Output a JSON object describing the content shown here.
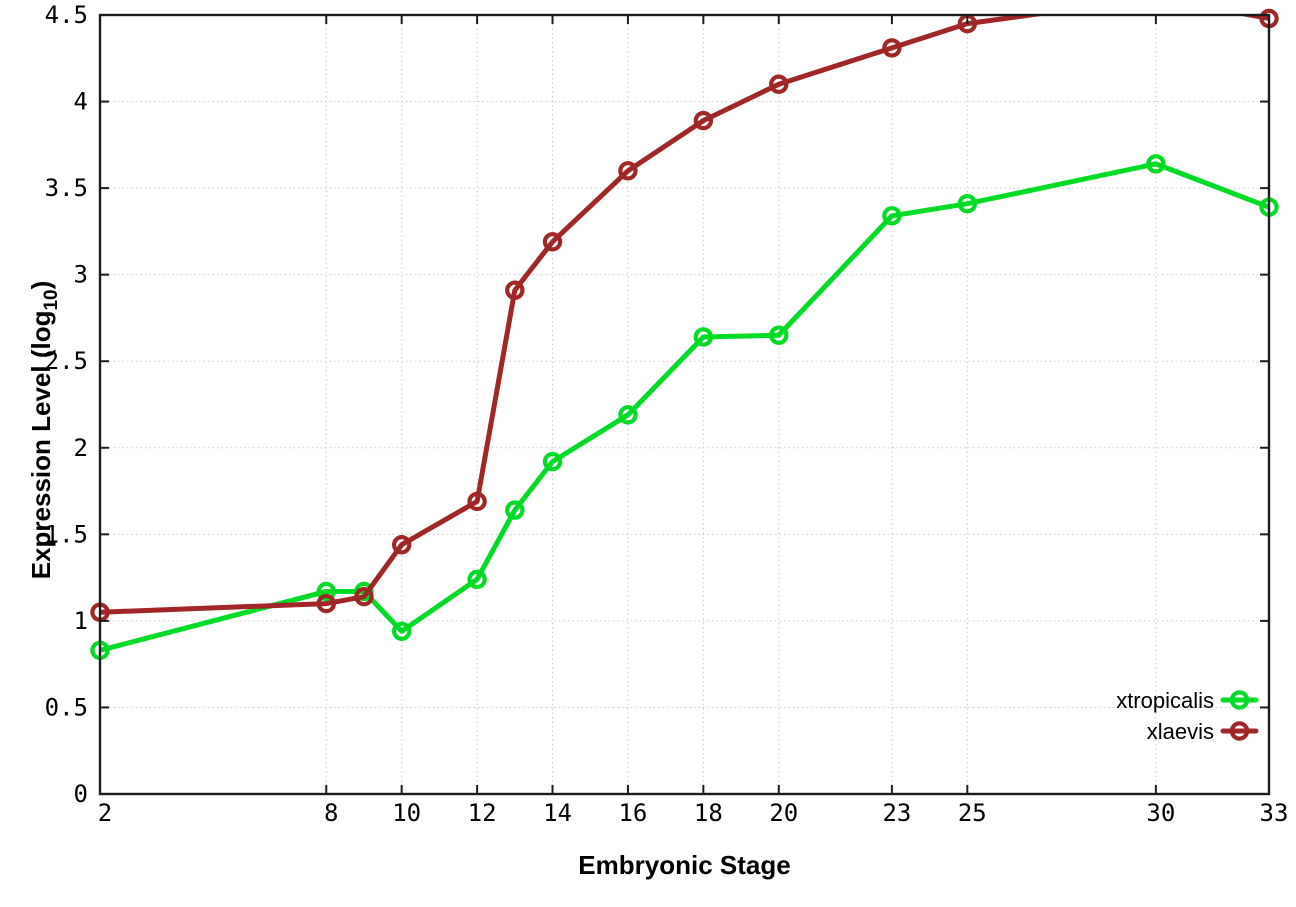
{
  "chart_data": {
    "type": "line",
    "title": "",
    "xlabel": "Embryonic Stage",
    "ylabel": {
      "prefix": "Expression Level (log",
      "subscript": "10",
      "suffix": ")"
    },
    "x": [
      2,
      8,
      9,
      10,
      12,
      13,
      14,
      16,
      18,
      20,
      23,
      25,
      30,
      33
    ],
    "series": [
      {
        "name": "xtropicalis",
        "color": "#00dc26",
        "marker": "open-circle",
        "values": [
          0.83,
          1.17,
          1.17,
          0.94,
          1.24,
          1.64,
          1.92,
          2.19,
          2.64,
          2.65,
          3.34,
          3.41,
          3.64,
          3.39
        ]
      },
      {
        "name": "xlaevis",
        "color": "#a12626",
        "marker": "open-circle",
        "values": [
          1.05,
          1.1,
          1.14,
          1.44,
          1.69,
          2.91,
          3.19,
          3.6,
          3.89,
          4.1,
          4.31,
          4.45,
          4.6,
          4.48
        ]
      }
    ],
    "xlim": [
      2,
      33
    ],
    "ylim": [
      0,
      4.5
    ],
    "xticks": {
      "values": [
        2,
        8,
        10,
        12,
        14,
        16,
        18,
        20,
        23,
        25,
        30,
        33
      ],
      "labels": [
        "2",
        "8",
        "10",
        "12",
        "14",
        "16",
        "18",
        "20",
        "23",
        "25",
        "30",
        "33"
      ]
    },
    "yticks": {
      "values": [
        0,
        0.5,
        1,
        1.5,
        2,
        2.5,
        3,
        3.5,
        4,
        4.5
      ],
      "labels": [
        "0",
        "0.5",
        "1",
        "1.5",
        "2",
        "2.5",
        "3",
        "3.5",
        "4",
        "4.5"
      ]
    },
    "grid": true,
    "legend_position": "bottom-right",
    "colors": {
      "axis": "#1c1c1c",
      "grid": "#c8c8c8",
      "text": "#000000",
      "background": "#ffffff"
    }
  }
}
